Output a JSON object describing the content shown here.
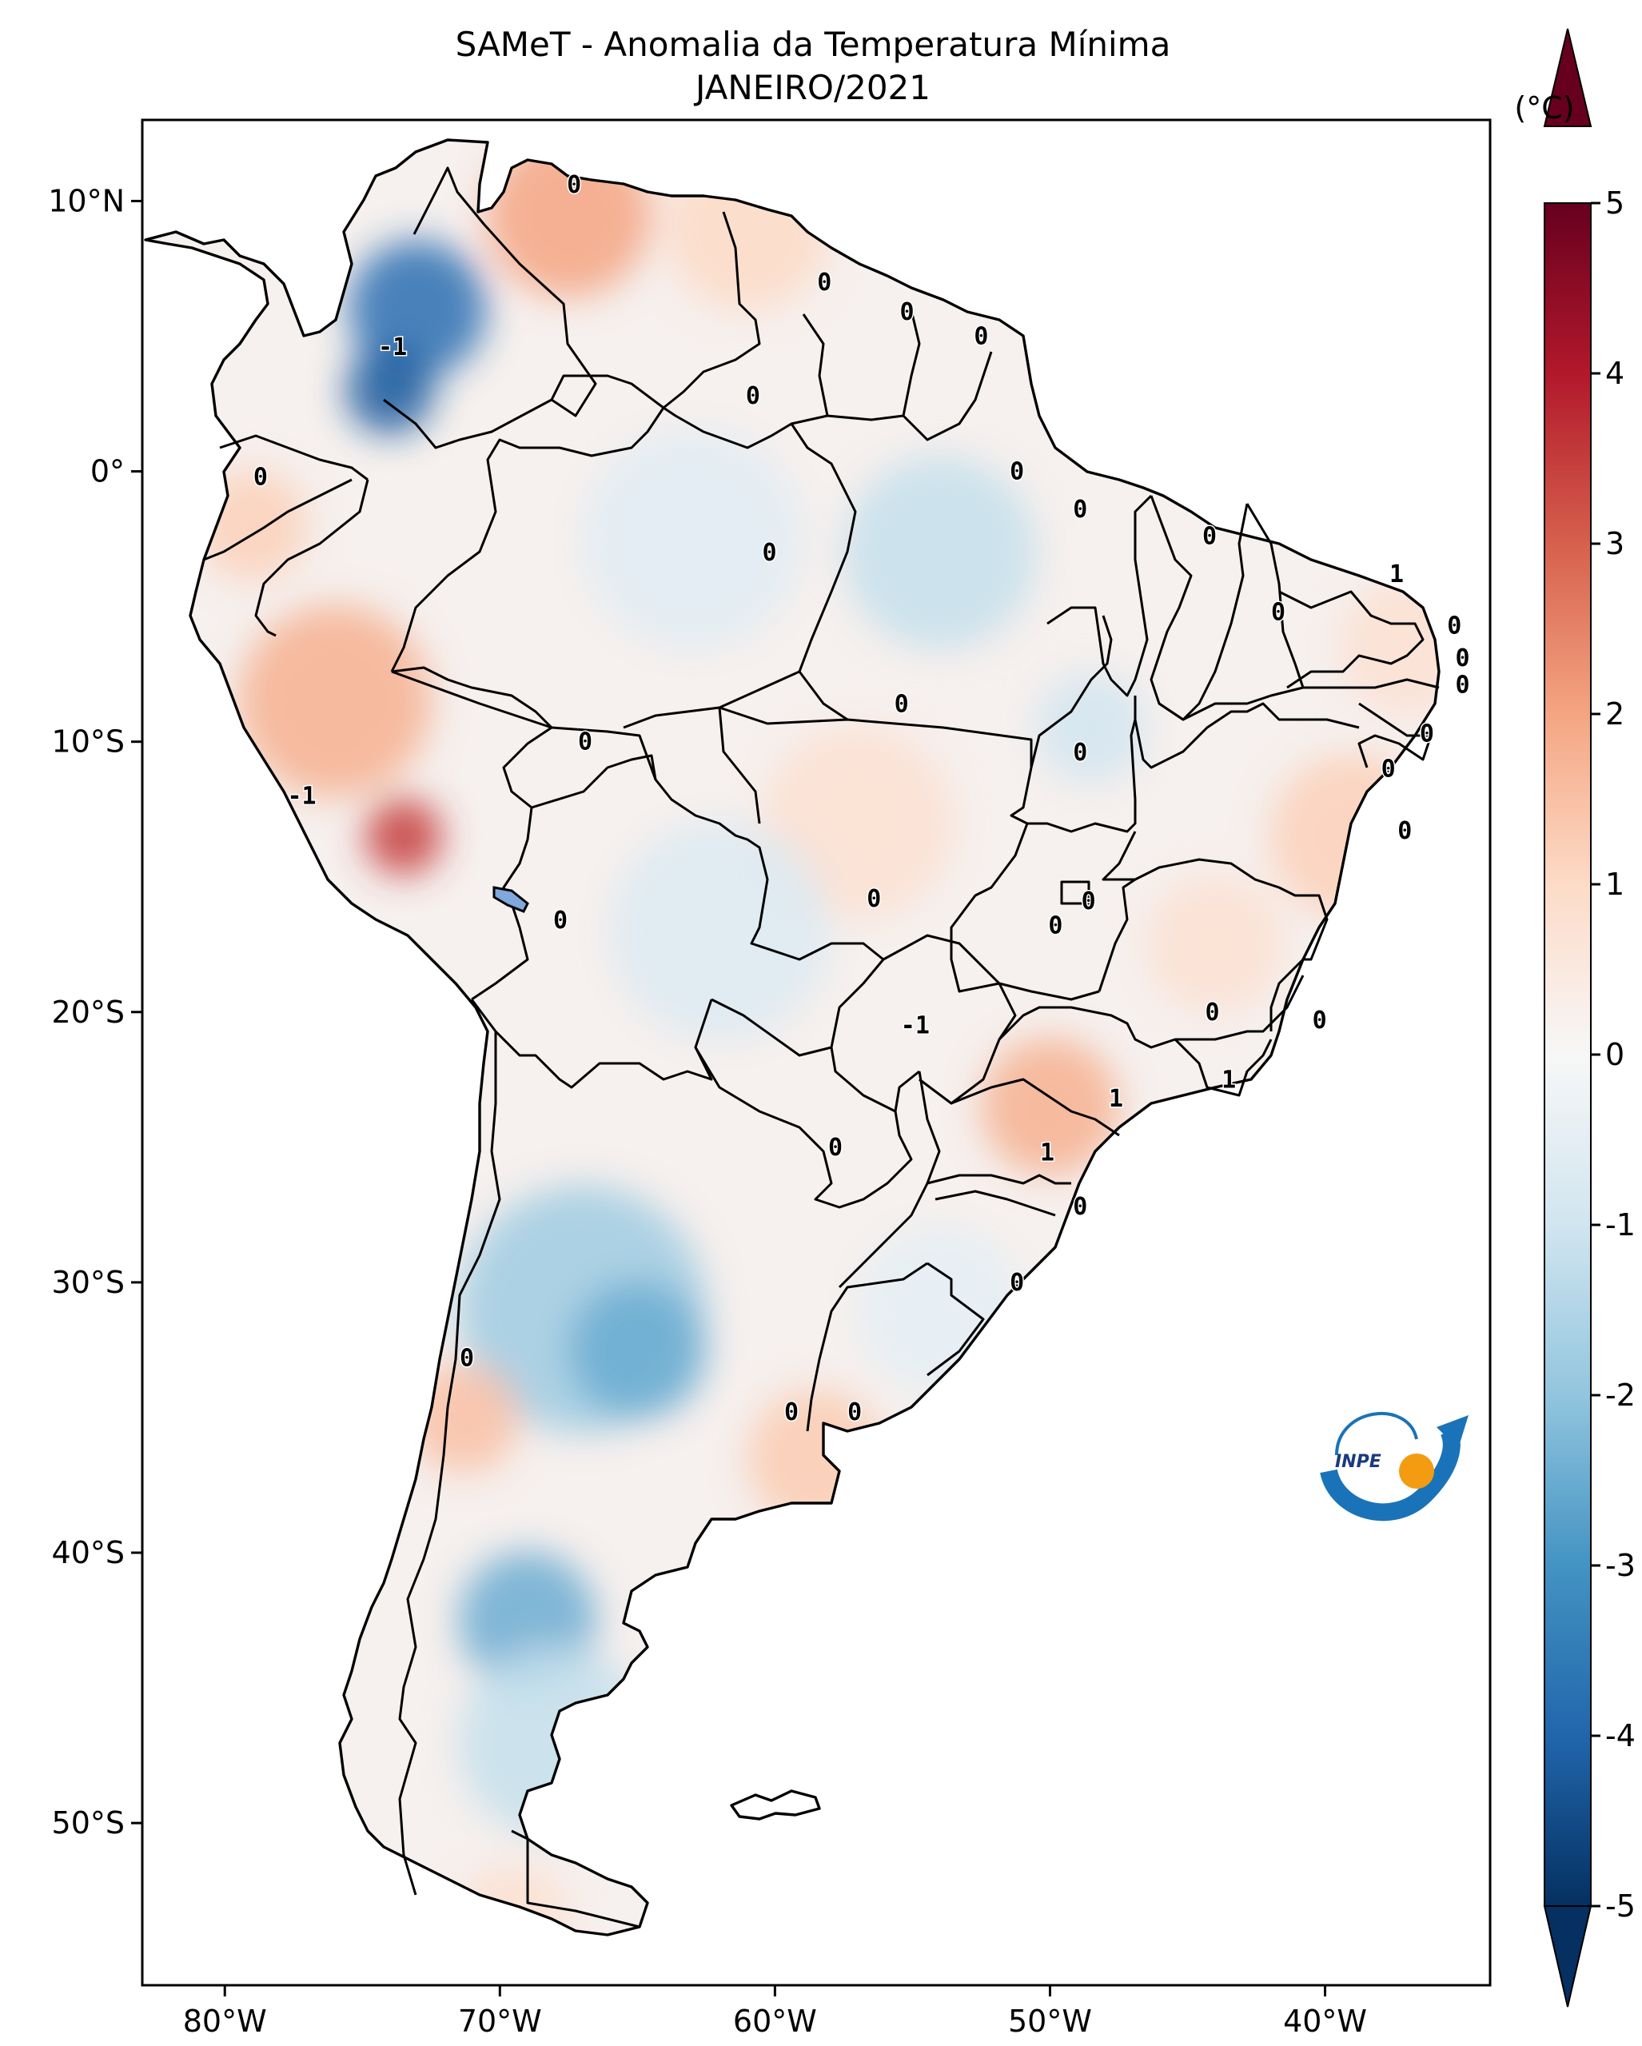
{
  "title": {
    "line1": "SAMeT - Anomalia da Temperatura Mínima",
    "line2": "JANEIRO/2021"
  },
  "colorbar": {
    "unit_label": "(°C)",
    "ticks": [
      "5",
      "4",
      "3",
      "2",
      "1",
      "0",
      "-1",
      "-2",
      "-3",
      "-4",
      "-5"
    ],
    "range": [
      -5,
      5
    ],
    "colormap": "RdBu_r",
    "extend": "both",
    "colors": [
      "#053061",
      "#2166ac",
      "#4393c3",
      "#92c5de",
      "#d1e5f0",
      "#f7f7f7",
      "#fddbc7",
      "#f4a582",
      "#d6604d",
      "#b2182b",
      "#67001f"
    ]
  },
  "axes": {
    "lat_ticks": [
      "10°N",
      "0°",
      "10°S",
      "20°S",
      "30°S",
      "40°S",
      "50°S"
    ],
    "lon_ticks": [
      "80°W",
      "70°W",
      "60°W",
      "50°W",
      "40°W"
    ]
  },
  "contour_labels": [
    {
      "text": "0",
      "lon": -67.3,
      "lat": 10.6
    },
    {
      "text": "0",
      "lon": -58.2,
      "lat": 7.0
    },
    {
      "text": "0",
      "lon": -55.2,
      "lat": 5.9
    },
    {
      "text": "0",
      "lon": -52.5,
      "lat": 5.0
    },
    {
      "text": "-1",
      "lon": -73.9,
      "lat": 4.6
    },
    {
      "text": "0",
      "lon": -60.8,
      "lat": 2.8
    },
    {
      "text": "0",
      "lon": -51.2,
      "lat": 0.0
    },
    {
      "text": "0",
      "lon": -48.9,
      "lat": -1.4
    },
    {
      "text": "0",
      "lon": -78.7,
      "lat": -0.2
    },
    {
      "text": "0",
      "lon": -60.2,
      "lat": -3.0
    },
    {
      "text": "0",
      "lon": -44.2,
      "lat": -2.4
    },
    {
      "text": "1",
      "lon": -37.4,
      "lat": -3.8
    },
    {
      "text": "0",
      "lon": -41.7,
      "lat": -5.2
    },
    {
      "text": "0",
      "lon": -35.3,
      "lat": -5.7
    },
    {
      "text": "0",
      "lon": -35.0,
      "lat": -6.9
    },
    {
      "text": "0",
      "lon": -35.0,
      "lat": -7.9
    },
    {
      "text": "0",
      "lon": -55.4,
      "lat": -8.6
    },
    {
      "text": "0",
      "lon": -36.3,
      "lat": -9.7
    },
    {
      "text": "0",
      "lon": -66.9,
      "lat": -10.0
    },
    {
      "text": "0",
      "lon": -48.9,
      "lat": -10.4
    },
    {
      "text": "0",
      "lon": -37.7,
      "lat": -11.0
    },
    {
      "text": "-1",
      "lon": -77.2,
      "lat": -12.0
    },
    {
      "text": "0",
      "lon": -37.1,
      "lat": -13.3
    },
    {
      "text": "0",
      "lon": -56.4,
      "lat": -15.8
    },
    {
      "text": "0",
      "lon": -48.6,
      "lat": -15.9
    },
    {
      "text": "0",
      "lon": -49.8,
      "lat": -16.8
    },
    {
      "text": "0",
      "lon": -67.8,
      "lat": -16.6
    },
    {
      "text": "0",
      "lon": -44.1,
      "lat": -20.0
    },
    {
      "text": "-1",
      "lon": -54.9,
      "lat": -20.5
    },
    {
      "text": "0",
      "lon": -40.2,
      "lat": -20.3
    },
    {
      "text": "1",
      "lon": -43.5,
      "lat": -22.5
    },
    {
      "text": "1",
      "lon": -47.6,
      "lat": -23.2
    },
    {
      "text": "0",
      "lon": -57.8,
      "lat": -25.0
    },
    {
      "text": "1",
      "lon": -50.1,
      "lat": -25.2
    },
    {
      "text": "0",
      "lon": -48.9,
      "lat": -27.2
    },
    {
      "text": "0",
      "lon": -51.2,
      "lat": -30.0
    },
    {
      "text": "0",
      "lon": -71.2,
      "lat": -32.8
    },
    {
      "text": "0",
      "lon": -59.4,
      "lat": -34.8
    },
    {
      "text": "0",
      "lon": -57.1,
      "lat": -34.8
    }
  ],
  "anomaly_spots": [
    {
      "lon": -73.0,
      "lat": 6.0,
      "value": -3.8,
      "spread": 2.5
    },
    {
      "lon": -74.0,
      "lat": 3.0,
      "value": -4.2,
      "spread": 1.6
    },
    {
      "lon": -67.5,
      "lat": 9.5,
      "value": 2.0,
      "spread": 3.0
    },
    {
      "lon": -61.0,
      "lat": 9.0,
      "value": 1.0,
      "spread": 3.0
    },
    {
      "lon": -54.0,
      "lat": -3.0,
      "value": -1.2,
      "spread": 3.5
    },
    {
      "lon": -63.0,
      "lat": -2.5,
      "value": -0.6,
      "spread": 4.0
    },
    {
      "lon": -76.0,
      "lat": -8.5,
      "value": 1.8,
      "spread": 3.5
    },
    {
      "lon": -73.5,
      "lat": -13.5,
      "value": 3.5,
      "spread": 1.4
    },
    {
      "lon": -79.0,
      "lat": -2.0,
      "value": 1.2,
      "spread": 2.0
    },
    {
      "lon": -57.0,
      "lat": -13.0,
      "value": 0.8,
      "spread": 3.5
    },
    {
      "lon": -62.0,
      "lat": -17.0,
      "value": -0.7,
      "spread": 4.0
    },
    {
      "lon": -48.5,
      "lat": -9.5,
      "value": -1.0,
      "spread": 2.0
    },
    {
      "lon": -39.0,
      "lat": -13.5,
      "value": 1.2,
      "spread": 3.0
    },
    {
      "lon": -50.0,
      "lat": -23.5,
      "value": 1.8,
      "spread": 2.5
    },
    {
      "lon": -44.0,
      "lat": -17.5,
      "value": 0.8,
      "spread": 2.5
    },
    {
      "lon": -67.0,
      "lat": -31.0,
      "value": -1.8,
      "spread": 4.5
    },
    {
      "lon": -65.0,
      "lat": -32.5,
      "value": -2.5,
      "spread": 2.5
    },
    {
      "lon": -71.3,
      "lat": -35.0,
      "value": 1.5,
      "spread": 2.0
    },
    {
      "lon": -58.5,
      "lat": -36.5,
      "value": 1.3,
      "spread": 2.5
    },
    {
      "lon": -69.0,
      "lat": -42.5,
      "value": -2.5,
      "spread": 2.5
    },
    {
      "lon": -68.0,
      "lat": -47.0,
      "value": -1.2,
      "spread": 3.5
    },
    {
      "lon": -69.5,
      "lat": -53.5,
      "value": 0.8,
      "spread": 2.0
    },
    {
      "lon": -54.0,
      "lat": -31.0,
      "value": -0.5,
      "spread": 3.0
    },
    {
      "lon": -37.0,
      "lat": -6.5,
      "value": 0.8,
      "spread": 2.5
    }
  ],
  "logo": {
    "text": "INPE"
  }
}
